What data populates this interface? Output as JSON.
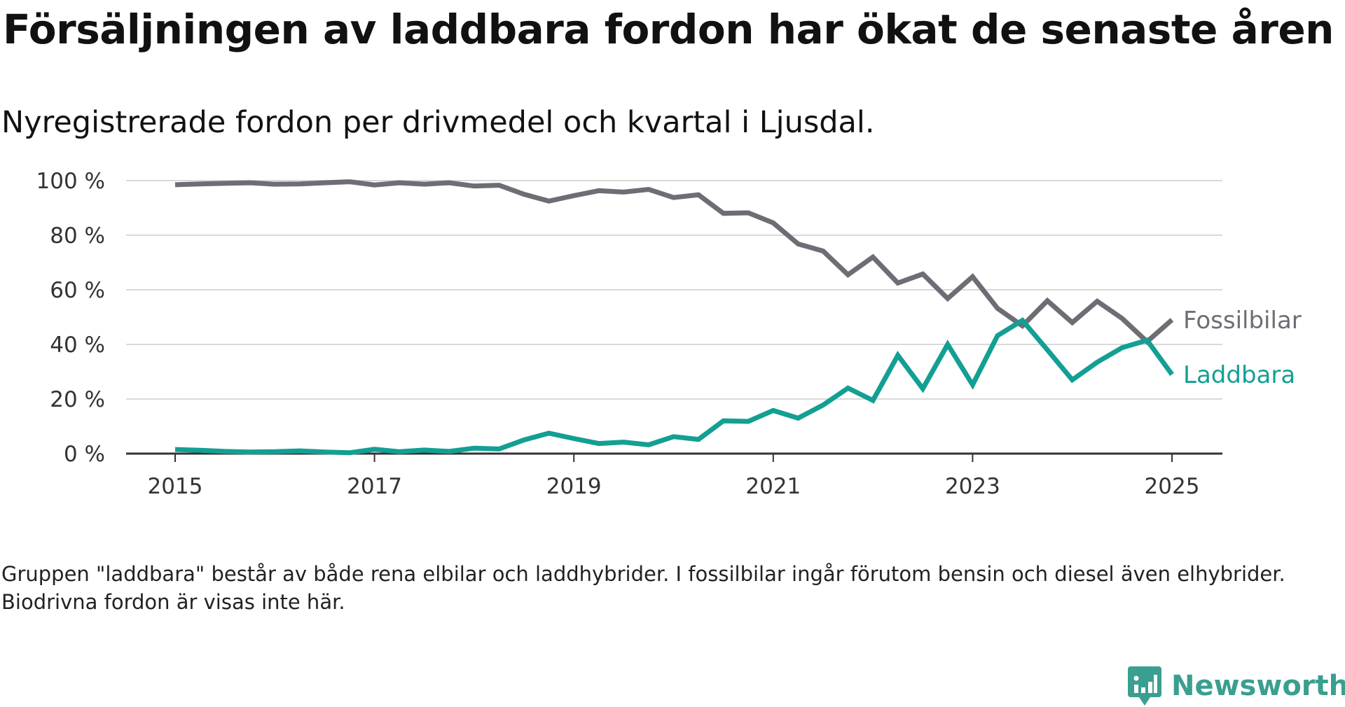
{
  "title": "Försäljningen av laddbara fordon har ökat de senaste åren",
  "subtitle": "Nyregistrerade fordon per drivmedel och kvartal i Ljusdal.",
  "footnote": "Gruppen \"laddbara\" består av både rena elbilar och laddhybrider. I fossilbilar ingår förutom bensin och diesel även elhybrider. Biodrivna fordon är visas inte här.",
  "brand": {
    "name": "Newsworthy",
    "icon": "newsworthy-logo-icon",
    "color": "#3a9f8f"
  },
  "chart_data": {
    "type": "line",
    "title": "Försäljningen av laddbara fordon har ökat de senaste åren",
    "subtitle": "Nyregistrerade fordon per drivmedel och kvartal i Ljusdal.",
    "xlabel": "",
    "ylabel": "",
    "ylim": [
      0,
      100
    ],
    "y_ticks": [
      0,
      20,
      40,
      60,
      80,
      100
    ],
    "y_tick_labels": [
      "0 %",
      "20 %",
      "40 %",
      "60 %",
      "80 %",
      "100 %"
    ],
    "xlim": [
      2014.75,
      2025.5
    ],
    "x_ticks": [
      2015,
      2017,
      2019,
      2021,
      2023,
      2025
    ],
    "x_tick_labels": [
      "2015",
      "2017",
      "2019",
      "2021",
      "2023",
      "2025"
    ],
    "grid": true,
    "legend": "direct labels at line ends",
    "x": [
      2015.0,
      2015.25,
      2015.5,
      2015.75,
      2016.0,
      2016.25,
      2016.5,
      2016.75,
      2017.0,
      2017.25,
      2017.5,
      2017.75,
      2018.0,
      2018.25,
      2018.5,
      2018.75,
      2019.0,
      2019.25,
      2019.5,
      2019.75,
      2020.0,
      2020.25,
      2020.5,
      2020.75,
      2021.0,
      2021.25,
      2021.5,
      2021.75,
      2022.0,
      2022.25,
      2022.5,
      2022.75,
      2023.0,
      2023.25,
      2023.5,
      2023.75,
      2024.0,
      2024.25,
      2024.5,
      2024.75,
      2025.0
    ],
    "series": [
      {
        "name": "Fossilbilar",
        "color": "#6e6d75",
        "values": [
          98.5,
          98.8,
          99.0,
          99.2,
          98.7,
          98.8,
          99.2,
          99.6,
          98.4,
          99.2,
          98.7,
          99.2,
          98.0,
          98.3,
          95.0,
          92.5,
          94.5,
          96.3,
          95.8,
          96.8,
          93.8,
          94.8,
          88.0,
          88.2,
          84.5,
          76.8,
          74.2,
          65.5,
          72.0,
          62.5,
          65.8,
          56.8,
          64.8,
          53.2,
          46.8,
          56.0,
          48.0,
          55.8,
          49.5,
          41.0,
          49.0
        ]
      },
      {
        "name": "Laddbara",
        "color": "#139f93",
        "values": [
          1.5,
          1.2,
          0.8,
          0.6,
          0.7,
          1.0,
          0.6,
          0.3,
          1.6,
          0.7,
          1.3,
          0.8,
          2.0,
          1.7,
          5.0,
          7.5,
          5.5,
          3.7,
          4.2,
          3.2,
          6.2,
          5.2,
          12.0,
          11.8,
          15.8,
          13.0,
          17.8,
          24.0,
          19.5,
          36.0,
          23.8,
          40.0,
          25.2,
          43.2,
          48.8,
          38.0,
          27.0,
          33.5,
          38.8,
          41.5,
          29.0
        ]
      }
    ]
  }
}
